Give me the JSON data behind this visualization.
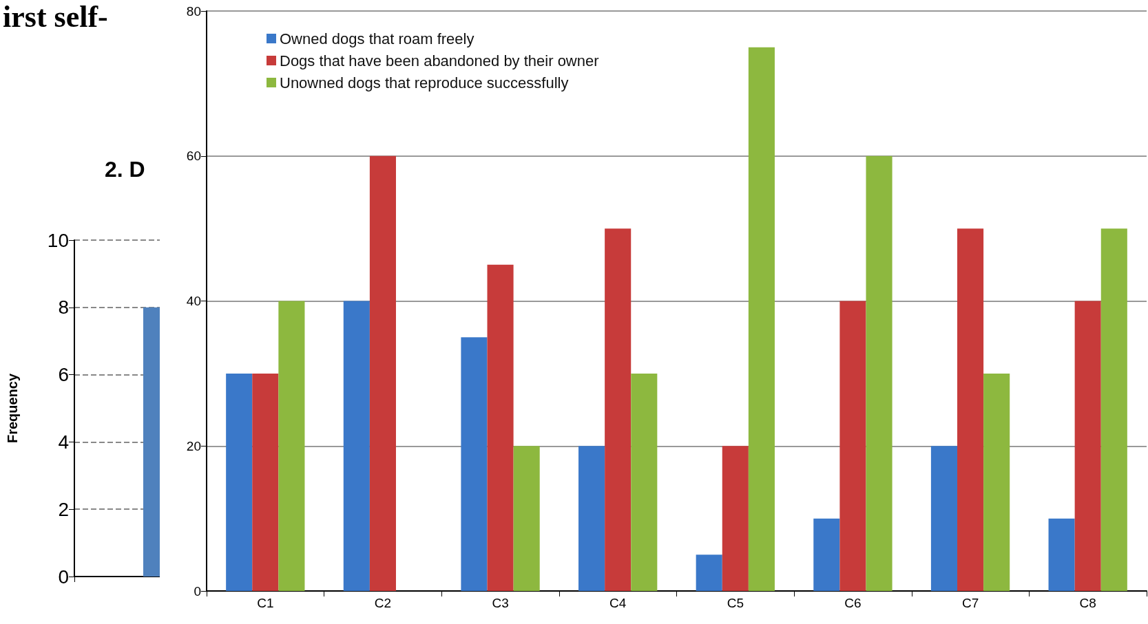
{
  "chart_data": [
    {
      "type": "bar",
      "title": "irst self-",
      "subtitle": "2. D",
      "ylabel": "Frequency",
      "categories": [
        null
      ],
      "values": [
        8
      ],
      "color": "#4f81bd",
      "ylim": [
        0,
        10
      ],
      "yticks": [
        0,
        2,
        4,
        6,
        8,
        10
      ],
      "grid": "y"
    },
    {
      "type": "bar",
      "categories": [
        "C1",
        "C2",
        "C3",
        "C4",
        "C5",
        "C6",
        "C7",
        "C8"
      ],
      "series": [
        {
          "name": "Owned dogs that roam freely",
          "color": "#3a78c9",
          "values": [
            30,
            40,
            35,
            20,
            5,
            10,
            20,
            10
          ]
        },
        {
          "name": "Dogs that have been abandoned by their owner",
          "color": "#c73b3a",
          "values": [
            30,
            60,
            45,
            50,
            20,
            40,
            50,
            40
          ]
        },
        {
          "name": "Unowned dogs that reproduce successfully",
          "color": "#8db83f",
          "values": [
            40,
            null,
            20,
            30,
            75,
            60,
            30,
            50
          ]
        }
      ],
      "ylim": [
        0,
        80
      ],
      "yticks": [
        0,
        20,
        40,
        60,
        80
      ],
      "grid": "y",
      "legend": "top left"
    }
  ]
}
